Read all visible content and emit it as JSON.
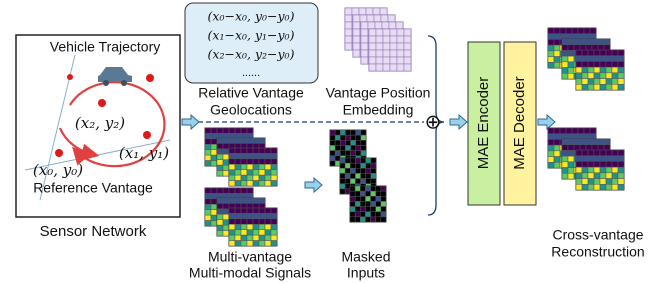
{
  "sensor_network": {
    "trajectory_label": "Vehicle Trajectory",
    "points": [
      "(x₂, y₂)",
      "(x₁, y₁)",
      "(x₀, y₀)"
    ],
    "reference_label": "Reference Vantage",
    "caption": "Sensor Network"
  },
  "geolocations": {
    "formulas": [
      "(x₀−x₀, y₀−y₀)",
      "(x₁−x₀, y₁−y₀)",
      "(x₂−x₀, y₂−y₀)",
      "......"
    ],
    "caption": [
      "Relative Vantage",
      "Geolocations"
    ]
  },
  "embedding": {
    "caption": [
      "Vantage Position",
      "Embedding"
    ]
  },
  "signals": {
    "caption": [
      "Multi-vantage",
      "Multi-modal Signals"
    ]
  },
  "masked": {
    "caption": [
      "Masked",
      "Inputs"
    ]
  },
  "combine": {
    "symbol": "⊕"
  },
  "encoder": {
    "label": "MAE Encoder"
  },
  "decoder": {
    "label": "MAE Decoder"
  },
  "output": {
    "caption": [
      "Cross-vantage",
      "Reconstruction"
    ]
  }
}
